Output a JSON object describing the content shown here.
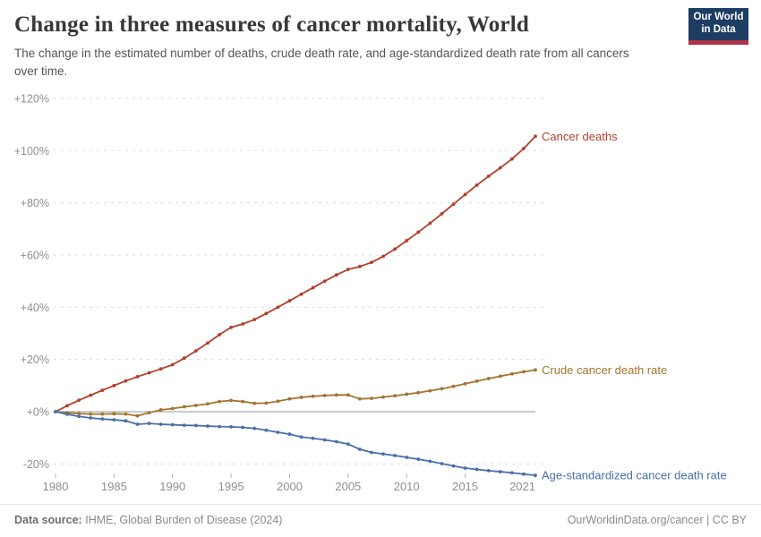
{
  "header": {
    "title": "Change in three measures of cancer mortality, World",
    "subtitle": "The change in the estimated number of deaths, crude death rate, and age-standardized death rate from all cancers over time."
  },
  "logo": {
    "line1": "Our World",
    "line2": "in Data",
    "bg_color": "#1d3d63",
    "bar_color": "#b03449"
  },
  "chart_data": {
    "type": "line",
    "title": "Change in three measures of cancer mortality, World",
    "xlabel": "",
    "ylabel": "",
    "grid": "horizontal dashed",
    "legend": "end-of-line labels",
    "ylim": [
      -30,
      126
    ],
    "x_ticks": [
      1980,
      1985,
      1990,
      1995,
      2000,
      2005,
      2010,
      2015,
      2021
    ],
    "y_ticks": [
      {
        "value": 120,
        "label": "+120%"
      },
      {
        "value": 100,
        "label": "+100%"
      },
      {
        "value": 80,
        "label": "+80%"
      },
      {
        "value": 60,
        "label": "+60%"
      },
      {
        "value": 40,
        "label": "+40%"
      },
      {
        "value": 20,
        "label": "+20%"
      },
      {
        "value": 0,
        "label": "+0%"
      },
      {
        "value": -20,
        "label": "-20%"
      }
    ],
    "x": [
      1980,
      1981,
      1982,
      1983,
      1984,
      1985,
      1986,
      1987,
      1988,
      1989,
      1990,
      1991,
      1992,
      1993,
      1994,
      1995,
      1996,
      1997,
      1998,
      1999,
      2000,
      2001,
      2002,
      2003,
      2004,
      2005,
      2006,
      2007,
      2008,
      2009,
      2010,
      2011,
      2012,
      2013,
      2014,
      2015,
      2016,
      2017,
      2018,
      2019,
      2020,
      2021
    ],
    "series": [
      {
        "name": "Cancer deaths",
        "color": "#B1402C",
        "unit": "%",
        "values": [
          0,
          2.3,
          4.4,
          6.3,
          8.2,
          10.0,
          11.8,
          13.4,
          14.9,
          16.4,
          18.0,
          20.5,
          23.3,
          26.3,
          29.5,
          32.3,
          33.6,
          35.3,
          37.6,
          40.0,
          42.5,
          45.0,
          47.5,
          50.0,
          52.4,
          54.5,
          55.6,
          57.2,
          59.5,
          62.3,
          65.5,
          68.8,
          72.2,
          75.8,
          79.5,
          83.2,
          86.8,
          90.2,
          93.4,
          96.8,
          100.8,
          105.5
        ]
      },
      {
        "name": "Crude cancer death rate",
        "color": "#A2752F",
        "unit": "%",
        "values": [
          0,
          -0.4,
          -0.7,
          -0.9,
          -0.9,
          -0.8,
          -0.9,
          -1.6,
          -0.4,
          0.7,
          1.2,
          1.9,
          2.4,
          3.0,
          3.9,
          4.3,
          3.9,
          3.2,
          3.3,
          4.0,
          4.9,
          5.5,
          5.9,
          6.2,
          6.4,
          6.4,
          4.9,
          5.1,
          5.6,
          6.1,
          6.7,
          7.3,
          8.0,
          8.8,
          9.7,
          10.7,
          11.7,
          12.7,
          13.6,
          14.5,
          15.3,
          16.0
        ]
      },
      {
        "name": "Age-standardized cancer death rate",
        "color": "#4A6FA8",
        "unit": "%",
        "values": [
          0,
          -1.0,
          -1.8,
          -2.4,
          -2.8,
          -3.1,
          -3.5,
          -4.8,
          -4.5,
          -4.8,
          -5.0,
          -5.2,
          -5.3,
          -5.5,
          -5.7,
          -5.8,
          -6.0,
          -6.4,
          -7.1,
          -7.9,
          -8.6,
          -9.7,
          -10.2,
          -10.8,
          -11.5,
          -12.4,
          -14.4,
          -15.6,
          -16.2,
          -16.8,
          -17.5,
          -18.2,
          -19.0,
          -19.9,
          -20.8,
          -21.6,
          -22.1,
          -22.6,
          -23.0,
          -23.4,
          -23.9,
          -24.4
        ]
      }
    ]
  },
  "footer": {
    "source_label": "Data source:",
    "source": "IHME, Global Burden of Disease (2024)",
    "link": "OurWorldinData.org/cancer | CC BY"
  }
}
